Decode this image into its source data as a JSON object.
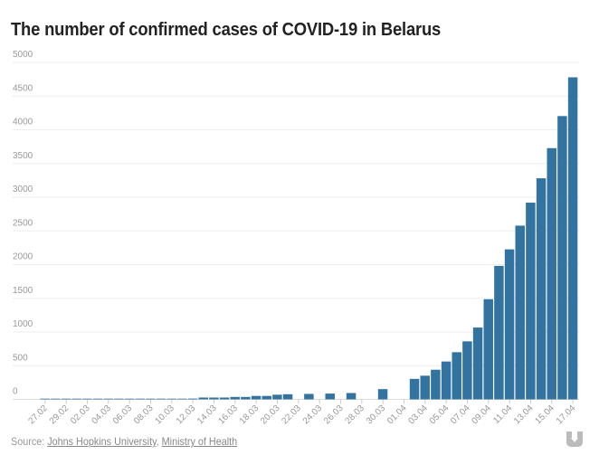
{
  "chart_data": {
    "type": "bar",
    "title": "The number of confirmed cases of COVID-19 in Belarus",
    "xlabel": "",
    "ylabel": "",
    "ylim": [
      0,
      5000
    ],
    "yticks": [
      0,
      500,
      1000,
      1500,
      2000,
      2500,
      3000,
      3500,
      4000,
      4500,
      5000
    ],
    "grid": true,
    "bar_color": "#33739f",
    "categories": [
      "27.02",
      "28.02",
      "29.02",
      "01.03",
      "02.03",
      "03.03",
      "04.03",
      "05.03",
      "06.03",
      "07.03",
      "08.03",
      "09.03",
      "10.03",
      "11.03",
      "12.03",
      "13.03",
      "14.03",
      "15.03",
      "16.03",
      "17.03",
      "18.03",
      "19.03",
      "20.03",
      "21.03",
      "22.03",
      "23.03",
      "24.03",
      "25.03",
      "26.03",
      "27.03",
      "28.03",
      "29.03",
      "30.03",
      "31.03",
      "01.04",
      "02.04",
      "03.04",
      "04.04",
      "05.04",
      "06.04",
      "07.04",
      "08.04",
      "09.04",
      "10.04",
      "11.04",
      "12.04",
      "13.04",
      "14.04",
      "15.04",
      "16.04",
      "17.04"
    ],
    "values": [
      1,
      1,
      1,
      1,
      1,
      1,
      6,
      6,
      6,
      6,
      6,
      6,
      9,
      9,
      12,
      27,
      27,
      27,
      36,
      36,
      51,
      51,
      69,
      76,
      null,
      81,
      null,
      86,
      null,
      94,
      null,
      null,
      152,
      null,
      null,
      304,
      351,
      440,
      562,
      700,
      861,
      1066,
      1486,
      1981,
      2226,
      2578,
      2919,
      3281,
      3728,
      4204,
      4779
    ],
    "xtick_labels": [
      "27.02",
      "29.02",
      "02.03",
      "04.03",
      "06.03",
      "08.03",
      "10.03",
      "12.03",
      "14.03",
      "16.03",
      "18.03",
      "20.03",
      "22.03",
      "24.03",
      "26.03",
      "28.03",
      "30.03",
      "01.04",
      "03.04",
      "05.04",
      "07.04",
      "09.04",
      "11.04",
      "13.04",
      "15.04",
      "17.04"
    ]
  },
  "source": {
    "prefix": "Source: ",
    "link1": "Johns Hopkins University",
    "sep": ", ",
    "link2": "Ministry of Health"
  }
}
